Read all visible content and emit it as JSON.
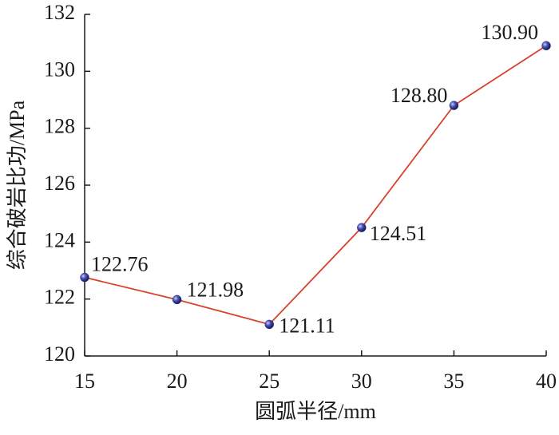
{
  "chart_data": {
    "type": "line",
    "x_label": "圆弧半径/mm",
    "y_label": "综合破岩比功/MPa",
    "x": [
      15,
      20,
      25,
      30,
      35,
      40
    ],
    "series": [
      {
        "color": "#d9412b",
        "marker_color": "#2a2f8a",
        "values": [
          122.76,
          121.98,
          121.11,
          124.51,
          128.8,
          130.9
        ],
        "value_labels": [
          "122.76",
          "121.98",
          "121.11",
          "124.51",
          "128.80",
          "130.90"
        ]
      }
    ],
    "xlim": [
      15,
      40
    ],
    "xticks": [
      15,
      20,
      25,
      30,
      35,
      40
    ],
    "ylim": [
      120,
      132
    ],
    "yticks": [
      120,
      122,
      124,
      126,
      128,
      130,
      132
    ]
  }
}
